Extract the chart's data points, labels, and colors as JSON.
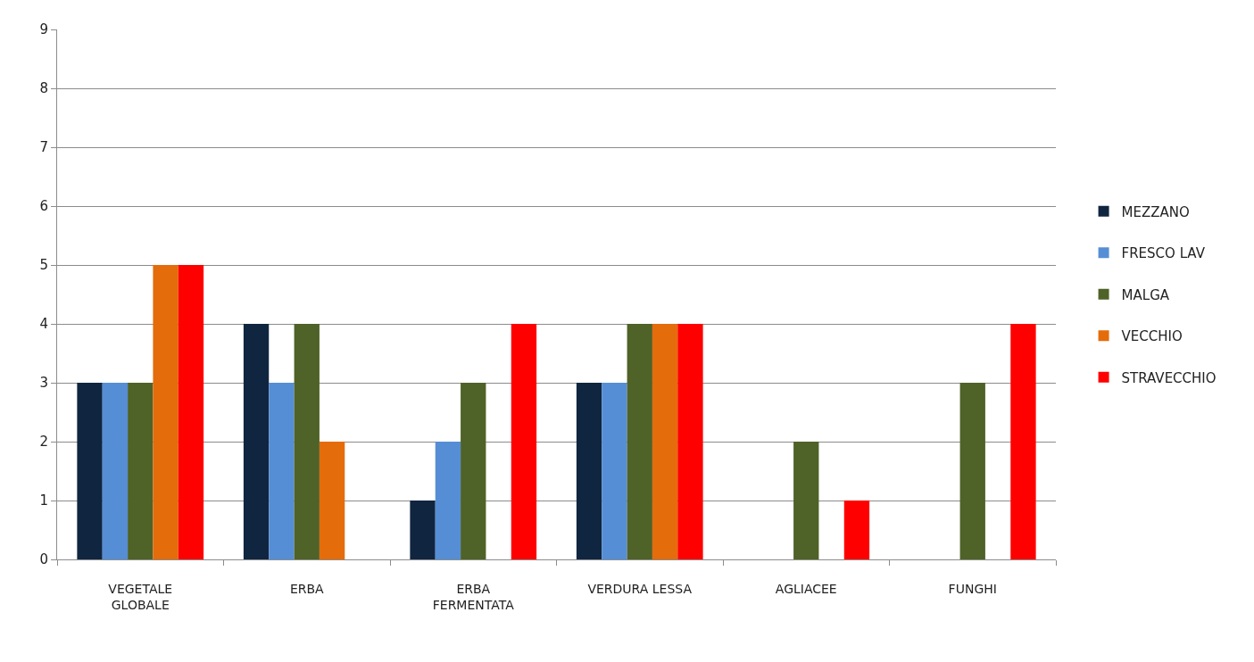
{
  "chart_data": {
    "type": "bar",
    "categories": [
      "VEGETALE GLOBALE",
      "ERBA",
      "ERBA FERMENTATA",
      "VERDURA LESSA",
      "AGLIACEE",
      "FUNGHI"
    ],
    "series": [
      {
        "name": "MEZZANO",
        "color": "#10253f",
        "values": [
          3,
          4,
          1,
          3,
          0,
          0
        ]
      },
      {
        "name": "FRESCO LAV",
        "color": "#558ed5",
        "values": [
          3,
          3,
          2,
          3,
          0,
          0
        ]
      },
      {
        "name": "MALGA",
        "color": "#4f6228",
        "values": [
          3,
          4,
          3,
          4,
          2,
          3
        ]
      },
      {
        "name": "VECCHIO",
        "color": "#e46c0a",
        "values": [
          5,
          2,
          0,
          4,
          0,
          0
        ]
      },
      {
        "name": "STRAVECCHIO",
        "color": "#ff0000",
        "values": [
          5,
          0,
          4,
          4,
          1,
          4
        ]
      }
    ],
    "ylim": [
      0,
      9
    ],
    "yticks": [
      0,
      1,
      2,
      3,
      4,
      5,
      6,
      7,
      8,
      9
    ],
    "grid": "y",
    "legend": "right"
  }
}
